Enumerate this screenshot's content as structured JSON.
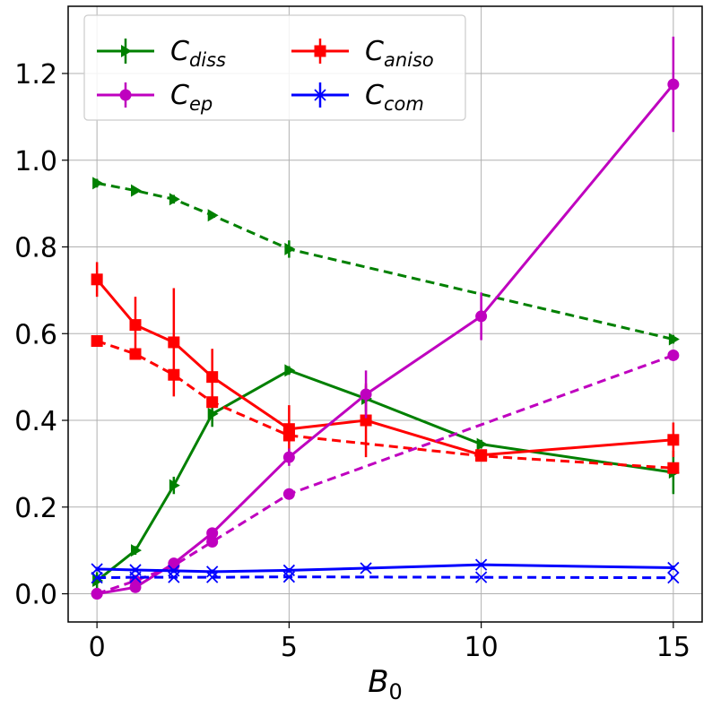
{
  "chart_data": {
    "type": "line",
    "title": "",
    "xlabel": "B",
    "xlabel_sub": "0",
    "ylabel": "",
    "xlim": [
      -0.75,
      15.75
    ],
    "ylim": [
      -0.065,
      1.355
    ],
    "xticks": [
      0,
      5,
      10,
      15
    ],
    "xtick_labels": [
      "0",
      "5",
      "10",
      "15"
    ],
    "yticks": [
      0.0,
      0.2,
      0.4,
      0.6,
      0.8,
      1.0,
      1.2
    ],
    "ytick_labels": [
      "0.0",
      "0.2",
      "0.4",
      "0.6",
      "0.8",
      "1.0",
      "1.2"
    ],
    "grid": true,
    "legend_position": "top-left",
    "series": [
      {
        "name": "C",
        "sub": "diss",
        "color": "#008000",
        "marker": "triangle-right",
        "style": "solid",
        "x": [
          0,
          1,
          2,
          3,
          5,
          7,
          10,
          15
        ],
        "y": [
          0.03,
          0.1,
          0.25,
          0.415,
          0.515,
          0.45,
          0.345,
          0.28
        ],
        "err": [
          0.02,
          0.01,
          0.02,
          0.03,
          0.01,
          0.03,
          0.01,
          0.05
        ]
      },
      {
        "name": "C",
        "sub": "diss (dashed)",
        "color": "#008000",
        "marker": "triangle-right",
        "style": "dashed",
        "legend": false,
        "x": [
          0,
          1,
          2,
          3,
          5,
          15
        ],
        "y": [
          0.947,
          0.93,
          0.91,
          0.873,
          0.795,
          0.587
        ],
        "err": [
          0.01,
          0.005,
          0.01,
          0.005,
          0.02,
          0.01
        ]
      },
      {
        "name": "C",
        "sub": "aniso",
        "color": "#ff0000",
        "marker": "square",
        "style": "solid",
        "x": [
          0,
          1,
          2,
          3,
          5,
          7,
          10,
          15
        ],
        "y": [
          0.725,
          0.62,
          0.58,
          0.5,
          0.38,
          0.4,
          0.32,
          0.355
        ],
        "err": [
          0.04,
          0.065,
          0.125,
          0.065,
          0.055,
          0.085,
          0.01,
          0.04
        ]
      },
      {
        "name": "C",
        "sub": "aniso (dashed)",
        "color": "#ff0000",
        "marker": "square",
        "style": "dashed",
        "legend": false,
        "x": [
          0,
          1,
          2,
          3,
          5,
          10,
          15
        ],
        "y": [
          0.583,
          0.553,
          0.505,
          0.442,
          0.365,
          0.318,
          0.29
        ],
        "err": [
          0.01,
          0.01,
          0.01,
          0.01,
          0.01,
          0.01,
          0.01
        ]
      },
      {
        "name": "C",
        "sub": "ep",
        "color": "#bf00bf",
        "marker": "circle",
        "style": "solid",
        "x": [
          0,
          1,
          2,
          3,
          5,
          7,
          10,
          15
        ],
        "y": [
          0.0,
          0.015,
          0.07,
          0.14,
          0.315,
          0.46,
          0.64,
          1.175
        ],
        "err": [
          0.0,
          0.005,
          0.01,
          0.01,
          0.02,
          0.055,
          0.055,
          0.11
        ]
      },
      {
        "name": "C",
        "sub": "ep (dashed)",
        "color": "#bf00bf",
        "marker": "circle",
        "style": "dashed",
        "legend": false,
        "x": [
          0,
          1,
          2,
          3,
          5,
          15
        ],
        "y": [
          0.0,
          0.03,
          0.065,
          0.12,
          0.23,
          0.55
        ],
        "err": [
          0.0,
          0.0,
          0.0,
          0.0,
          0.0,
          0.0
        ]
      },
      {
        "name": "C",
        "sub": "com",
        "color": "#0000ff",
        "marker": "x",
        "style": "solid",
        "x": [
          0,
          1,
          2,
          3,
          5,
          7,
          10,
          15
        ],
        "y": [
          0.057,
          0.055,
          0.053,
          0.051,
          0.054,
          0.059,
          0.067,
          0.06
        ],
        "err": [
          0.005,
          0.005,
          0.005,
          0.005,
          0.005,
          0.005,
          0.005,
          0.005
        ]
      },
      {
        "name": "C",
        "sub": "com (dashed)",
        "color": "#0000ff",
        "marker": "x",
        "style": "dashed",
        "legend": false,
        "x": [
          0,
          1,
          2,
          3,
          5,
          10,
          15
        ],
        "y": [
          0.037,
          0.038,
          0.038,
          0.038,
          0.039,
          0.038,
          0.037
        ],
        "err": [
          0.0,
          0.0,
          0.0,
          0.0,
          0.0,
          0.0,
          0.0
        ]
      }
    ],
    "legend": [
      {
        "name": "C",
        "sub": "diss",
        "color": "#008000",
        "marker": "triangle-right"
      },
      {
        "name": "C",
        "sub": "ep",
        "color": "#bf00bf",
        "marker": "circle"
      },
      {
        "name": "C",
        "sub": "aniso",
        "color": "#ff0000",
        "marker": "square"
      },
      {
        "name": "C",
        "sub": "com",
        "color": "#0000ff",
        "marker": "x"
      }
    ]
  }
}
